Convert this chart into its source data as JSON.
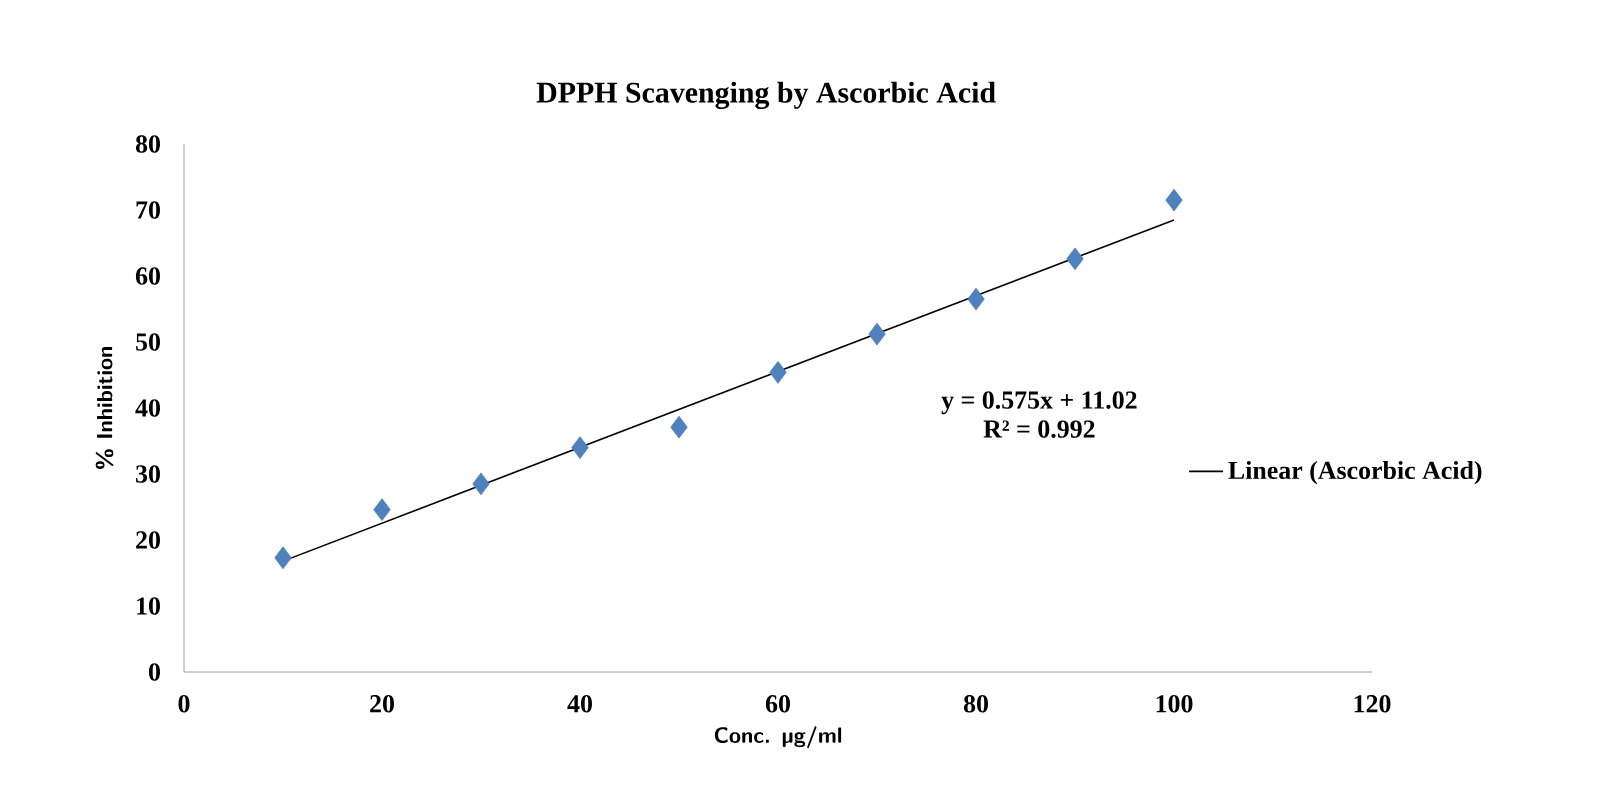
{
  "chart_data": {
    "type": "scatter",
    "title": "DPPH Scavenging by Ascorbic Acid",
    "xlabel": "Conc. µg/ml",
    "ylabel": "% Inhibition",
    "xlim": [
      0,
      120
    ],
    "xticks": [
      0,
      20,
      40,
      60,
      80,
      100,
      120
    ],
    "ylim": [
      0,
      80
    ],
    "yticks": [
      0,
      10,
      20,
      30,
      40,
      50,
      60,
      70,
      80
    ],
    "grid": false,
    "legend": "right",
    "marker": "diamond",
    "annotations": [
      "y = 0.575x + 11.02",
      "R² = 0.992"
    ],
    "series": [
      {
        "color": "#4f81bd",
        "x": [
          10,
          20,
          30,
          40,
          50,
          60,
          70,
          80,
          90,
          100
        ],
        "values": [
          17.3,
          24.6,
          28.5,
          34.0,
          37.1,
          45.4,
          51.2,
          56.5,
          62.6,
          71.5
        ]
      },
      {
        "type": "line",
        "name": "Linear (Ascorbic Acid)",
        "color": "#000000",
        "x": [
          10,
          100
        ],
        "values": [
          16.8,
          68.5
        ],
        "line_style": "solid",
        "marker": "none"
      }
    ]
  }
}
